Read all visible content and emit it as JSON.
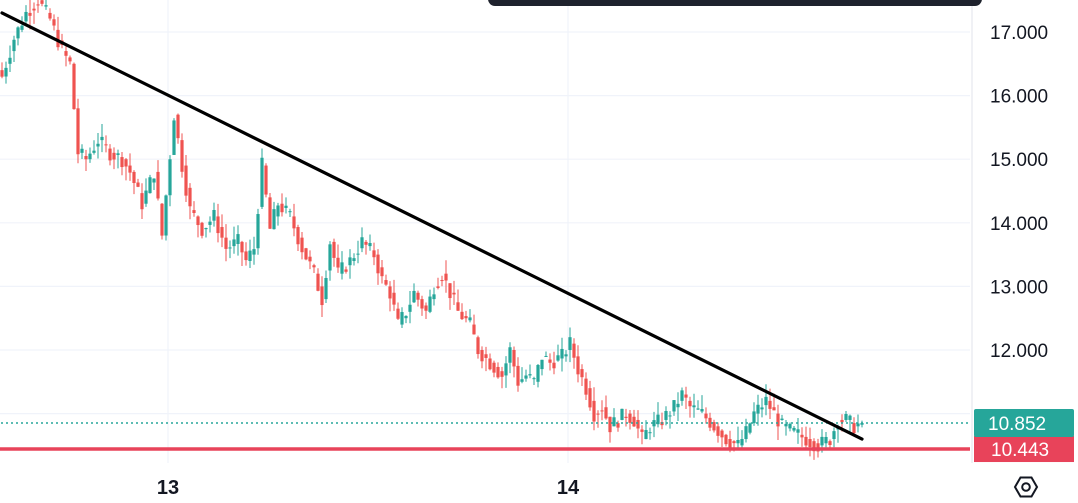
{
  "chart_data": {
    "type": "candlestick",
    "title": "",
    "xlabel": "",
    "ylabel": "",
    "ylim": [
      10.2,
      17.5
    ],
    "y_ticks": [
      "17.000",
      "16.000",
      "15.000",
      "14.000",
      "13.000",
      "12.000"
    ],
    "y_tick_values": [
      17,
      16,
      15,
      14,
      13,
      12
    ],
    "x_ticks": [
      {
        "label": "13",
        "index": 42
      },
      {
        "label": "14",
        "index": 142
      }
    ],
    "grid": true,
    "colors": {
      "up": "#26a69a",
      "down": "#ef5350",
      "trendline": "#000000",
      "support": "#e8435a",
      "last_price_line": "#26a69a",
      "grid": "#f0f3fa",
      "axis_text": "#131722"
    },
    "trendline": {
      "from": {
        "index": 0,
        "value": 17.3
      },
      "to": {
        "index": 215,
        "value": 10.6
      }
    },
    "support_line": {
      "value": 10.443,
      "label": "10.443"
    },
    "last_price": {
      "value": 10.852,
      "label": "10.852"
    },
    "candle_count": 216,
    "anchors": [
      [
        0,
        16.3
      ],
      [
        3,
        16.9
      ],
      [
        6,
        17.3
      ],
      [
        9,
        17.5
      ],
      [
        12,
        17.2
      ],
      [
        15,
        16.7
      ],
      [
        17,
        16.5
      ],
      [
        19,
        15.1
      ],
      [
        21,
        15.0
      ],
      [
        24,
        15.3
      ],
      [
        27,
        15.1
      ],
      [
        30,
        15.0
      ],
      [
        32,
        14.8
      ],
      [
        35,
        14.3
      ],
      [
        38,
        14.8
      ],
      [
        40,
        13.8
      ],
      [
        43,
        15.7
      ],
      [
        45,
        14.9
      ],
      [
        47,
        14.2
      ],
      [
        50,
        13.9
      ],
      [
        53,
        14.1
      ],
      [
        56,
        13.6
      ],
      [
        59,
        13.7
      ],
      [
        61,
        13.4
      ],
      [
        63,
        13.6
      ],
      [
        65,
        14.9
      ],
      [
        67,
        13.9
      ],
      [
        69,
        14.3
      ],
      [
        72,
        14.1
      ],
      [
        75,
        13.6
      ],
      [
        78,
        13.2
      ],
      [
        80,
        12.8
      ],
      [
        82,
        13.7
      ],
      [
        84,
        13.2
      ],
      [
        87,
        13.4
      ],
      [
        90,
        13.7
      ],
      [
        93,
        13.5
      ],
      [
        95,
        13.1
      ],
      [
        97,
        12.9
      ],
      [
        99,
        12.4
      ],
      [
        101,
        12.6
      ],
      [
        103,
        12.9
      ],
      [
        106,
        12.6
      ],
      [
        108,
        13.0
      ],
      [
        110,
        13.2
      ],
      [
        112,
        12.9
      ],
      [
        114,
        12.6
      ],
      [
        117,
        12.4
      ],
      [
        119,
        12.0
      ],
      [
        122,
        11.8
      ],
      [
        125,
        11.6
      ],
      [
        127,
        12.0
      ],
      [
        129,
        11.5
      ],
      [
        131,
        11.6
      ],
      [
        133,
        11.5
      ],
      [
        135,
        11.9
      ],
      [
        137,
        11.8
      ],
      [
        140,
        11.9
      ],
      [
        142,
        12.1
      ],
      [
        144,
        11.7
      ],
      [
        146,
        11.4
      ],
      [
        148,
        11.0
      ],
      [
        150,
        11.1
      ],
      [
        152,
        10.8
      ],
      [
        154,
        10.9
      ],
      [
        156,
        11.0
      ],
      [
        158,
        10.9
      ],
      [
        160,
        10.6
      ],
      [
        162,
        10.8
      ],
      [
        165,
        10.9
      ],
      [
        168,
        11.1
      ],
      [
        170,
        11.3
      ],
      [
        172,
        11.1
      ],
      [
        175,
        11.0
      ],
      [
        178,
        10.8
      ],
      [
        181,
        10.6
      ],
      [
        184,
        10.5
      ],
      [
        186,
        10.7
      ],
      [
        188,
        11.0
      ],
      [
        191,
        11.2
      ],
      [
        193,
        11.0
      ],
      [
        195,
        10.8
      ],
      [
        198,
        10.7
      ],
      [
        201,
        10.6
      ],
      [
        204,
        10.5
      ],
      [
        207,
        10.6
      ],
      [
        209,
        10.9
      ],
      [
        211,
        10.9
      ],
      [
        213,
        10.8
      ],
      [
        215,
        10.85
      ]
    ]
  }
}
